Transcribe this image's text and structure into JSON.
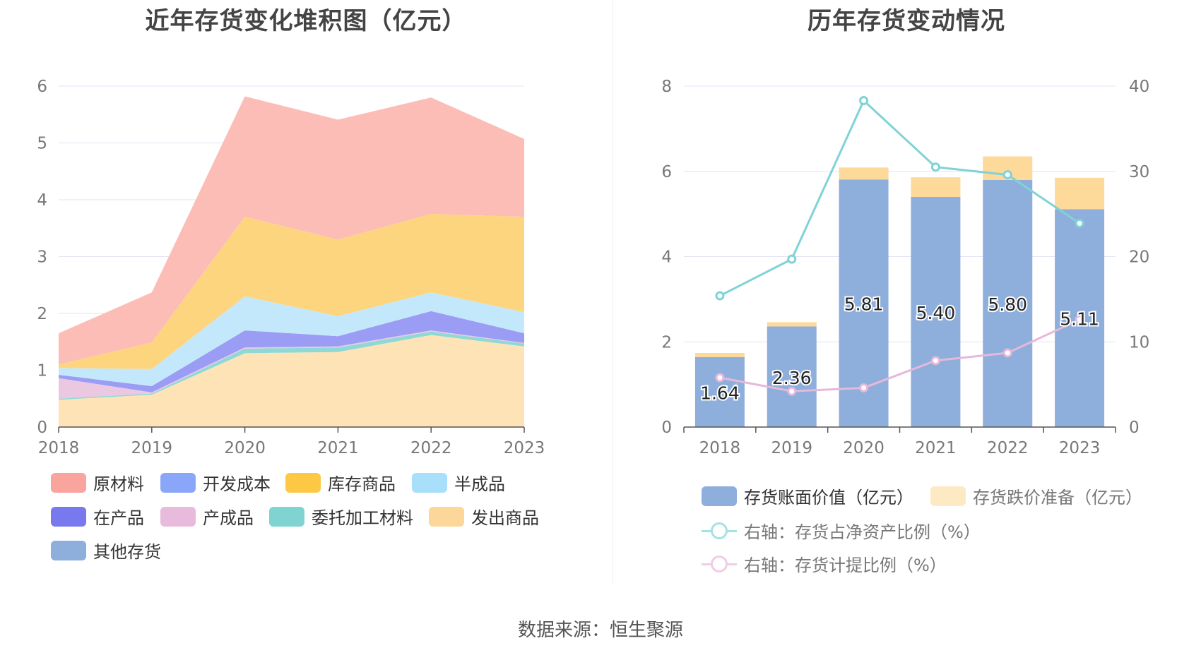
{
  "footer": {
    "source": "数据来源：恒生聚源"
  },
  "chart_data": [
    {
      "type": "area",
      "title": "近年存货变化堆积图（亿元）",
      "categories": [
        "2018",
        "2019",
        "2020",
        "2021",
        "2022",
        "2023"
      ],
      "ylim": [
        0,
        6
      ],
      "yticks": [
        "0",
        "1",
        "2",
        "3",
        "4",
        "5",
        "6"
      ],
      "stacked": true,
      "grid": true,
      "legend_position": "bottom",
      "series": [
        {
          "name": "发出商品",
          "color": "#fde3b6",
          "values": [
            0.48,
            0.57,
            1.3,
            1.32,
            1.62,
            1.42
          ]
        },
        {
          "name": "委托加工材料",
          "color": "#8ed8d6",
          "values": [
            0.02,
            0.02,
            0.08,
            0.08,
            0.06,
            0.05
          ]
        },
        {
          "name": "产成品",
          "color": "#ebc8e2",
          "values": [
            0.36,
            0.02,
            0.02,
            0.02,
            0.02,
            0.01
          ]
        },
        {
          "name": "在产品",
          "color": "#9b9df5",
          "values": [
            0.06,
            0.11,
            0.3,
            0.18,
            0.34,
            0.17
          ]
        },
        {
          "name": "半成品",
          "color": "#c3e8fb",
          "values": [
            0.12,
            0.3,
            0.6,
            0.35,
            0.33,
            0.37
          ]
        },
        {
          "name": "开发成本",
          "color": "#8faaf7",
          "values": [
            0,
            0,
            0,
            0,
            0,
            0
          ]
        },
        {
          "name": "库存商品",
          "color": "#fed57f",
          "values": [
            0.06,
            0.47,
            1.4,
            1.35,
            1.38,
            1.68
          ]
        },
        {
          "name": "原材料",
          "color": "#fcbdb7",
          "values": [
            0.55,
            0.88,
            2.12,
            2.11,
            2.05,
            1.37
          ]
        },
        {
          "name": "其他存货",
          "color": "#8eaedb",
          "values": [
            0,
            0,
            0,
            0,
            0,
            0
          ]
        }
      ],
      "legend": [
        {
          "name": "原材料",
          "color": "#f9a49c"
        },
        {
          "name": "开发成本",
          "color": "#8aa6f8"
        },
        {
          "name": "库存商品",
          "color": "#fdc945"
        },
        {
          "name": "半成品",
          "color": "#a8dffb"
        },
        {
          "name": "在产品",
          "color": "#7879ef"
        },
        {
          "name": "产成品",
          "color": "#e8bbdc"
        },
        {
          "name": "委托加工材料",
          "color": "#7fd3d1"
        },
        {
          "name": "发出商品",
          "color": "#fdd699"
        },
        {
          "name": "其他存货",
          "color": "#8eaedb"
        }
      ]
    },
    {
      "type": "bar",
      "title": "历年存货变动情况",
      "categories": [
        "2018",
        "2019",
        "2020",
        "2021",
        "2022",
        "2023"
      ],
      "ylim": [
        0,
        8
      ],
      "yticks": [
        "0",
        "2",
        "4",
        "6",
        "8"
      ],
      "y2lim": [
        0,
        40
      ],
      "y2ticks": [
        "0",
        "10",
        "20",
        "30",
        "40"
      ],
      "stacked": true,
      "grid": true,
      "legend_position": "bottom",
      "series": [
        {
          "name": "存货账面价值（亿元）",
          "color": "#8eaedb",
          "axis": "left",
          "kind": "bar",
          "values": [
            1.64,
            2.36,
            5.81,
            5.4,
            5.8,
            5.11
          ],
          "labels": [
            "1.64",
            "2.36",
            "5.81",
            "5.40",
            "5.80",
            "5.11"
          ]
        },
        {
          "name": "存货跌价准备（亿元）",
          "color": "#fdd99a",
          "axis": "left",
          "kind": "bar",
          "values": [
            0.1,
            0.1,
            0.28,
            0.46,
            0.55,
            0.74
          ]
        },
        {
          "name": "右轴：存货占净资产比例（%）",
          "color": "#7fd3d6",
          "axis": "right",
          "kind": "line",
          "values": [
            15.4,
            19.7,
            38.3,
            30.5,
            29.6,
            23.9
          ]
        },
        {
          "name": "右轴：存货计提比例（%）",
          "color": "#e6b8da",
          "axis": "right",
          "kind": "line",
          "values": [
            5.8,
            4.2,
            4.6,
            7.8,
            8.7,
            12.6
          ]
        }
      ],
      "legend": [
        {
          "name": "存货账面价值（亿元）",
          "color": "#8eaedb",
          "kind": "box"
        },
        {
          "name": "存货跌价准备（亿元）",
          "color": "#fde9c4",
          "kind": "box"
        },
        {
          "name": "右轴：存货占净资产比例（%）",
          "color": "#a6e1e3",
          "kind": "line"
        },
        {
          "name": "右轴：存货计提比例（%）",
          "color": "#f0cde6",
          "kind": "line"
        }
      ]
    }
  ]
}
